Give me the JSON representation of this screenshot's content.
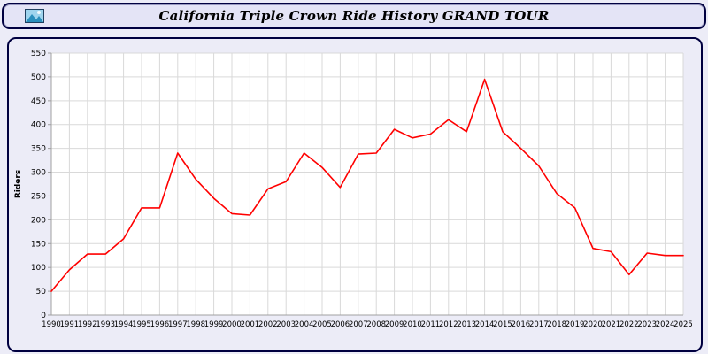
{
  "header": {
    "title": "California Triple Crown Ride History GRAND TOUR"
  },
  "colors": {
    "page_bg": "#ececf7",
    "panel_border": "#000040",
    "line": "#ff0000",
    "grid": "#d9d9d9",
    "axis": "#a0a0a0",
    "plot_bg": "#ffffff",
    "logo_sky": "#9fd4ee",
    "logo_hill": "#2a8fbd"
  },
  "chart_data": {
    "type": "line",
    "title": "California Triple Crown Ride History GRAND TOUR",
    "xlabel": "",
    "ylabel": "Riders",
    "ylim": [
      0,
      550
    ],
    "ytick_step": 50,
    "grid": true,
    "legend": "none",
    "x": [
      1990,
      1991,
      1992,
      1993,
      1994,
      1995,
      1996,
      1997,
      1998,
      1999,
      2000,
      2001,
      2002,
      2003,
      2004,
      2005,
      2006,
      2007,
      2008,
      2009,
      2010,
      2011,
      2012,
      2013,
      2014,
      2015,
      2016,
      2017,
      2018,
      2019,
      2020,
      2021,
      2022,
      2023,
      2024,
      2025
    ],
    "series": [
      {
        "name": "Riders",
        "color": "#ff0000",
        "values": [
          50,
          95,
          128,
          128,
          160,
          225,
          225,
          340,
          285,
          245,
          213,
          210,
          265,
          280,
          340,
          310,
          268,
          338,
          340,
          390,
          372,
          380,
          410,
          385,
          495,
          385,
          350,
          313,
          255,
          225,
          140,
          133,
          85,
          130,
          125,
          125
        ]
      }
    ]
  }
}
